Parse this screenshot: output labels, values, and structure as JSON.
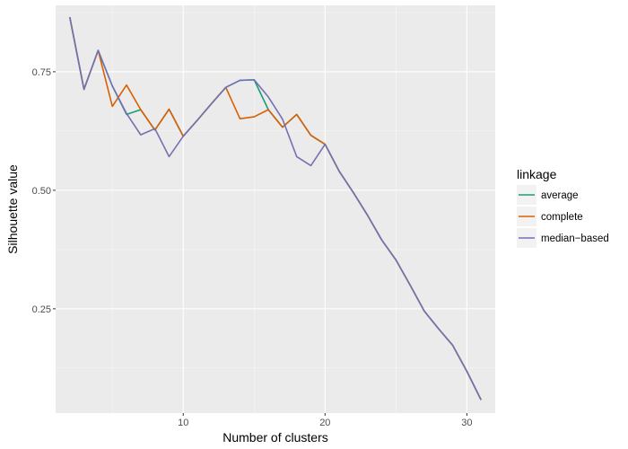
{
  "chart_data": {
    "type": "line",
    "title": "",
    "xlabel": "Number of clusters",
    "ylabel": "Silhouette value",
    "xlim": [
      1,
      32
    ],
    "ylim": [
      0.03,
      0.89
    ],
    "x_ticks": [
      10,
      20,
      30
    ],
    "x_tick_labels": [
      "10",
      "20",
      "30"
    ],
    "y_ticks": [
      0.25,
      0.5,
      0.75
    ],
    "y_tick_labels": [
      "0.25",
      "0.50",
      "0.75"
    ],
    "grid": true,
    "legend": {
      "title": "linkage",
      "placement": "right"
    },
    "x": [
      2,
      3,
      4,
      5,
      6,
      7,
      8,
      9,
      10,
      11,
      12,
      13,
      14,
      15,
      16,
      17,
      18,
      19,
      20,
      21,
      22,
      23,
      24,
      25,
      26,
      27,
      28,
      29,
      30,
      31
    ],
    "series": [
      {
        "name": "average",
        "color": "#1b9e77",
        "values": [
          0.865,
          0.713,
          0.795,
          0.72,
          0.66,
          0.67,
          0.627,
          0.671,
          0.614,
          0.648,
          0.683,
          0.717,
          0.732,
          0.733,
          0.67,
          0.633,
          0.66,
          0.616,
          0.597,
          0.54,
          0.495,
          0.447,
          0.395,
          0.353,
          0.3,
          0.245,
          0.208,
          0.173,
          0.118,
          0.058
        ]
      },
      {
        "name": "complete",
        "color": "#d95f02",
        "values": [
          0.865,
          0.713,
          0.795,
          0.677,
          0.722,
          0.67,
          0.627,
          0.671,
          0.614,
          0.648,
          0.683,
          0.717,
          0.651,
          0.655,
          0.67,
          0.633,
          0.66,
          0.616,
          0.597,
          0.54,
          0.495,
          0.447,
          0.395,
          0.353,
          0.3,
          0.245,
          0.208,
          0.173,
          0.118,
          0.058
        ]
      },
      {
        "name": "median−based",
        "color": "#7570b3",
        "values": [
          0.865,
          0.713,
          0.795,
          0.72,
          0.662,
          0.617,
          0.63,
          0.571,
          0.614,
          0.648,
          0.683,
          0.717,
          0.732,
          0.733,
          0.697,
          0.65,
          0.571,
          0.552,
          0.597,
          0.54,
          0.495,
          0.447,
          0.395,
          0.353,
          0.3,
          0.245,
          0.208,
          0.173,
          0.118,
          0.058
        ]
      }
    ],
    "colors": {
      "panel_background": "#ebebeb",
      "grid_major": "#ffffff",
      "legend_key_background": "#f2f2f2"
    }
  }
}
